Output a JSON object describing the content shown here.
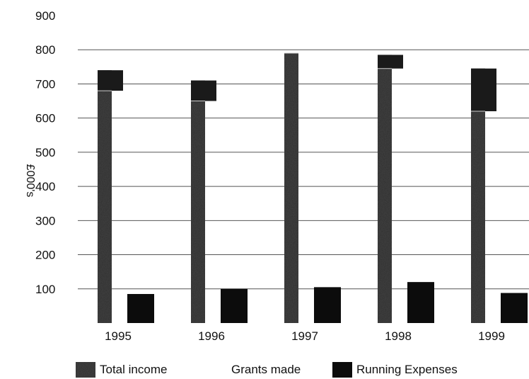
{
  "chart_data": {
    "type": "bar",
    "categories": [
      "1995",
      "1996",
      "1997",
      "1998",
      "1999"
    ],
    "series": [
      {
        "name": "Total income",
        "values": [
          740,
          710,
          790,
          785,
          745
        ],
        "color": "#444444"
      },
      {
        "name": "Grants made",
        "values": [
          680,
          650,
          790,
          745,
          620
        ],
        "color": "#cfcfcf"
      },
      {
        "name": "Running Expenses",
        "values": [
          85,
          100,
          105,
          120,
          88
        ],
        "color": "#0c0c0c"
      }
    ],
    "title": "",
    "xlabel": "",
    "ylabel": "£000's",
    "ylim": [
      0,
      900
    ],
    "yticks": [
      100,
      200,
      300,
      400,
      500,
      600,
      700,
      800,
      900
    ],
    "grid": true
  },
  "legend": {
    "items": [
      {
        "label": "Total income",
        "icon": "speckled-swatch"
      },
      {
        "label": "Grants made",
        "icon": "none"
      },
      {
        "label": "Running Expenses",
        "icon": "black-swatch"
      }
    ]
  }
}
